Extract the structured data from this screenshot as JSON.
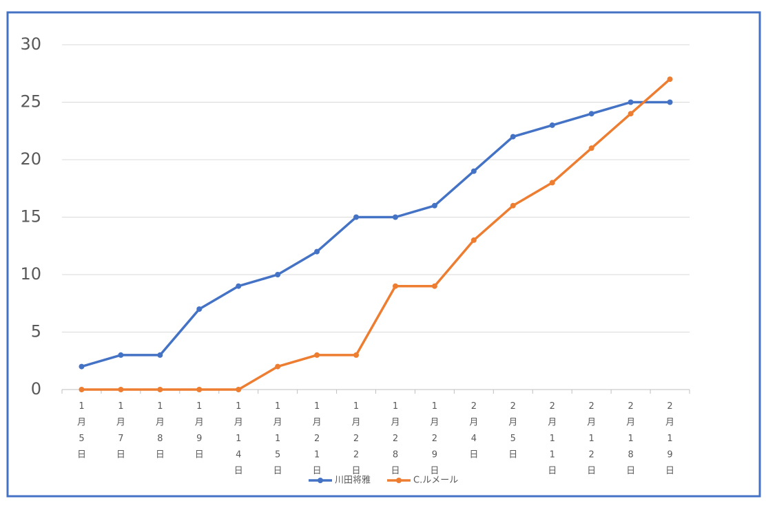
{
  "chart_data": {
    "type": "line",
    "categories": [
      "1月5日",
      "1月7日",
      "1月8日",
      "1月9日",
      "1月14日",
      "1月15日",
      "1月21日",
      "1月22日",
      "1月28日",
      "1月29日",
      "2月4日",
      "2月5日",
      "2月11日",
      "2月12日",
      "2月18日",
      "2月19日"
    ],
    "series": [
      {
        "name": "川田将雅",
        "color": "#4472c4",
        "values": [
          2,
          3,
          3,
          7,
          9,
          10,
          12,
          15,
          15,
          16,
          19,
          22,
          23,
          24,
          25,
          25
        ]
      },
      {
        "name": "C.ルメール",
        "color": "#ed7d31",
        "values": [
          0,
          0,
          0,
          0,
          0,
          2,
          3,
          3,
          9,
          9,
          13,
          16,
          18,
          21,
          24,
          27
        ]
      }
    ],
    "ylim": [
      0,
      30
    ],
    "yticks": [
      0,
      5,
      10,
      15,
      20,
      25,
      30
    ],
    "grid": true,
    "legend": "bottom"
  }
}
